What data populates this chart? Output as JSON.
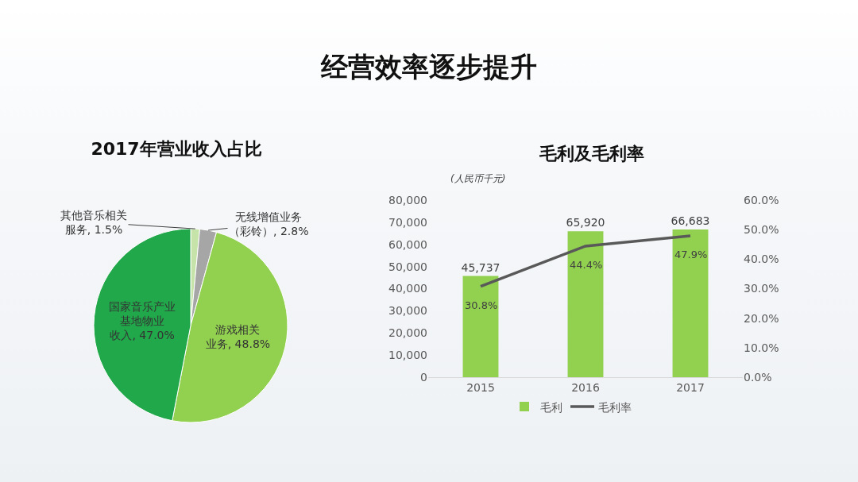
{
  "chart_data": [
    {
      "type": "other",
      "title": "经营效率逐步提升"
    },
    {
      "type": "pie",
      "title": "2017年营业收入占比",
      "categories": [
        "其他音乐相关服务",
        "无线增值业务（彩铃）",
        "游戏相关业务",
        "国家音乐产业基地物业收入"
      ],
      "values": [
        1.5,
        2.8,
        48.8,
        47.0
      ],
      "value_labels": [
        "1.5%",
        "2.8%",
        "48.8%",
        "47.0%"
      ],
      "colors": [
        "#c6e3a9",
        "#a6a6a6",
        "#92d050",
        "#21a84a"
      ]
    },
    {
      "type": "bar",
      "title": "毛利及毛利率",
      "ylabel": "(人民币千元)",
      "categories": [
        "2015",
        "2016",
        "2017"
      ],
      "series": [
        {
          "name": "毛利",
          "type": "bar",
          "color": "#92d050",
          "values": [
            45737,
            65920,
            66683
          ],
          "value_labels": [
            "45,737",
            "65,920",
            "66,683"
          ]
        },
        {
          "name": "毛利率",
          "type": "line",
          "axis": "y2",
          "color": "#595959",
          "values": [
            30.8,
            44.4,
            47.9
          ],
          "value_labels": [
            "30.8%",
            "44.4%",
            "47.9%"
          ]
        }
      ],
      "ylim": [
        0,
        80000
      ],
      "yticks": [
        0,
        {
          "value": 10000,
          "label": "10,000"
        },
        {
          "value": 20000,
          "label": "20,000"
        },
        {
          "value": 30000,
          "label": "30,000"
        },
        {
          "value": 40000,
          "label": "40,000"
        },
        {
          "value": 50000,
          "label": "50,000"
        },
        {
          "value": 60000,
          "label": "60,000"
        },
        {
          "value": 70000,
          "label": "70,000"
        },
        {
          "value": 80000,
          "label": "80,000"
        }
      ],
      "y2lim": [
        0,
        60
      ],
      "y2ticks": [
        {
          "value": 0,
          "label": "0.0%"
        },
        {
          "value": 10,
          "label": "10.0%"
        },
        {
          "value": 20,
          "label": "20.0%"
        },
        {
          "value": 30,
          "label": "30.0%"
        },
        {
          "value": 40,
          "label": "40.0%"
        },
        {
          "value": 50,
          "label": "50.0%"
        },
        {
          "value": 60,
          "label": "60.0%"
        }
      ],
      "legend": "bottom"
    }
  ]
}
